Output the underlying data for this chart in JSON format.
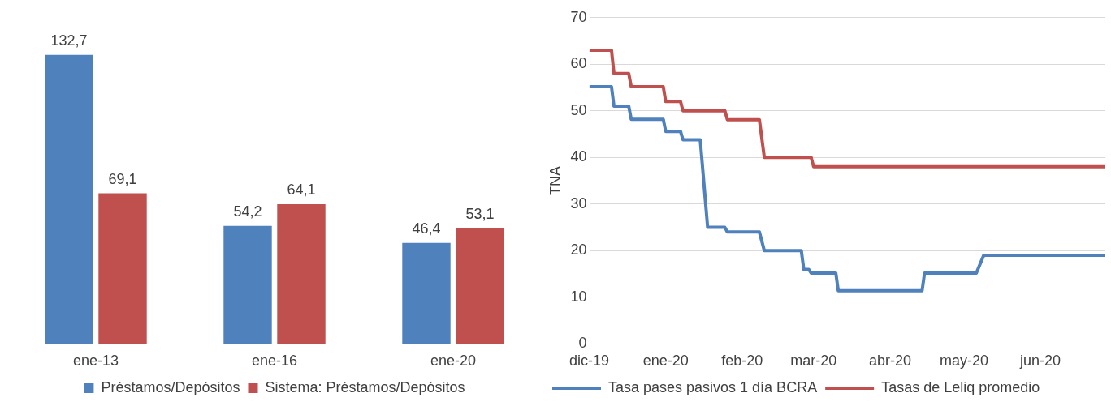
{
  "chart_data": [
    {
      "type": "bar",
      "categories": [
        "ene-13",
        "ene-16",
        "ene-20"
      ],
      "series": [
        {
          "name": "Préstamos/Depósitos",
          "color": "#4f81bd",
          "values": [
            132.7,
            54.2,
            46.4
          ],
          "value_labels": [
            "132,7",
            "54,2",
            "46,4"
          ]
        },
        {
          "name": "Sistema: Préstamos/Depósitos",
          "color": "#c0504d",
          "values": [
            69.1,
            64.1,
            53.1
          ],
          "value_labels": [
            "69,1",
            "64,1",
            "53,1"
          ]
        }
      ],
      "legend": "bottom",
      "grid": false
    },
    {
      "type": "line",
      "ylabel": "TNA",
      "xlim": [
        "2019-12-01",
        "2020-06-27"
      ],
      "ylim": [
        0,
        70
      ],
      "yticks": [
        0,
        10,
        20,
        30,
        40,
        50,
        60,
        70
      ],
      "xticks": [
        {
          "value": "2019-12-01",
          "label": "dic-19"
        },
        {
          "value": "2020-01-01",
          "label": "ene-20"
        },
        {
          "value": "2020-02-01",
          "label": "feb-20"
        },
        {
          "value": "2020-03-01",
          "label": "mar-20"
        },
        {
          "value": "2020-04-01",
          "label": "abr-20"
        },
        {
          "value": "2020-05-01",
          "label": "may-20"
        },
        {
          "value": "2020-06-01",
          "label": "jun-20"
        }
      ],
      "series": [
        {
          "name": "Tasa pases pasivos 1 día BCRA",
          "color": "#4f81bd",
          "x": [
            "2019-12-01",
            "2019-12-10",
            "2019-12-11",
            "2019-12-17",
            "2019-12-18",
            "2019-12-31",
            "2020-01-01",
            "2020-01-07",
            "2020-01-08",
            "2020-01-15",
            "2020-01-18",
            "2020-01-25",
            "2020-01-26",
            "2020-02-08",
            "2020-02-09",
            "2020-02-10",
            "2020-02-25",
            "2020-02-26",
            "2020-02-28",
            "2020-02-29",
            "2020-03-10",
            "2020-03-11",
            "2020-04-14",
            "2020-04-15",
            "2020-05-06",
            "2020-05-09",
            "2020-06-27"
          ],
          "values": [
            55.2,
            55.2,
            51,
            51,
            48.2,
            48.2,
            45.6,
            45.6,
            43.8,
            43.8,
            25,
            25,
            24,
            24,
            22,
            20,
            20,
            16,
            16,
            15.2,
            15.2,
            11.4,
            11.4,
            15.2,
            15.2,
            19,
            19
          ]
        },
        {
          "name": "Tasas de Leliq promedio",
          "color": "#c0504d",
          "x": [
            "2019-12-01",
            "2019-12-10",
            "2019-12-11",
            "2019-12-17",
            "2019-12-18",
            "2019-12-31",
            "2020-01-01",
            "2020-01-07",
            "2020-01-08",
            "2020-01-25",
            "2020-01-26",
            "2020-02-08",
            "2020-02-09",
            "2020-02-10",
            "2020-02-29",
            "2020-03-01",
            "2020-06-27"
          ],
          "values": [
            63,
            63,
            58,
            58,
            55.2,
            55.2,
            52,
            52,
            50,
            50,
            48.1,
            48.1,
            44,
            40,
            40,
            38,
            38
          ]
        }
      ],
      "legend": "bottom",
      "grid": "y",
      "marker": "none",
      "line_style": "solid"
    }
  ]
}
